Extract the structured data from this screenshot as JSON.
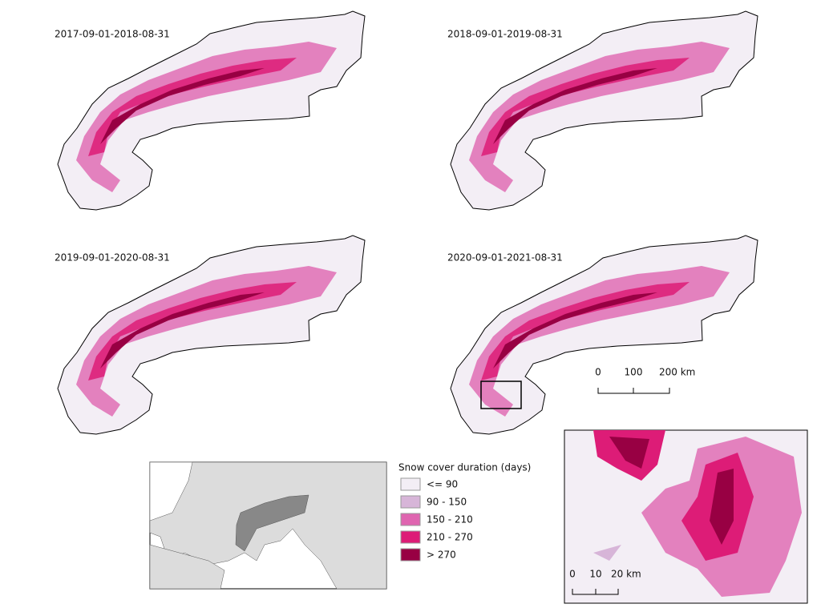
{
  "panels": [
    {
      "title": "2017-09-01-2018-08-31"
    },
    {
      "title": "2018-09-01-2019-08-31"
    },
    {
      "title": "2019-09-01-2020-08-31"
    },
    {
      "title": "2020-09-01-2021-08-31"
    }
  ],
  "scale_bar": {
    "labels": [
      "0",
      "100",
      "200 km"
    ]
  },
  "zoom_scale_bar": {
    "labels": [
      "0",
      "10",
      "20 km"
    ]
  },
  "legend": {
    "title": "Snow cover duration (days)",
    "items": [
      {
        "label": "<= 90",
        "color": "#f3eef5"
      },
      {
        "label": "90 - 150",
        "color": "#d7b5d8"
      },
      {
        "label": "150 - 210",
        "color": "#df65b0"
      },
      {
        "label": "210 - 270",
        "color": "#dd1c77"
      },
      {
        "label": "> 270",
        "color": "#980043"
      }
    ]
  }
}
